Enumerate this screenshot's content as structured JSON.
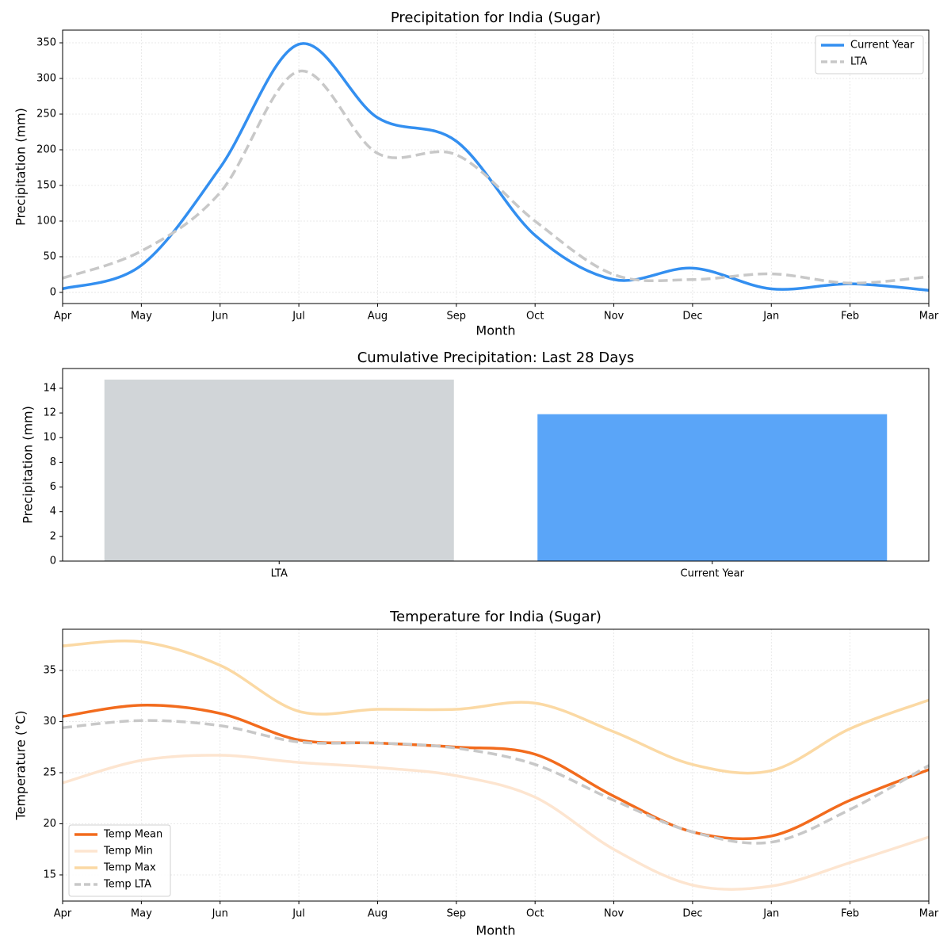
{
  "chart_data": [
    {
      "type": "line",
      "title": "Precipitation for India (Sugar)",
      "xlabel": "Month",
      "ylabel": "Precipitation (mm)",
      "categories": [
        "Apr",
        "May",
        "Jun",
        "Jul",
        "Aug",
        "Sep",
        "Oct",
        "Nov",
        "Dec",
        "Jan",
        "Feb",
        "Mar"
      ],
      "series": [
        {
          "name": "Current Year",
          "color": "#338ff0",
          "linestyle": "solid",
          "width": 3.5,
          "values": [
            5,
            38,
            175,
            348,
            245,
            212,
            80,
            18,
            34,
            5,
            12,
            3
          ]
        },
        {
          "name": "LTA",
          "color": "#c8c8c8",
          "linestyle": "dashed",
          "width": 3.5,
          "values": [
            20,
            58,
            140,
            310,
            195,
            193,
            100,
            25,
            18,
            26,
            13,
            22
          ]
        }
      ],
      "ylim": [
        -15.6,
        367.8
      ],
      "yticks": [
        0,
        50,
        100,
        150,
        200,
        250,
        300,
        350
      ],
      "grid": true,
      "legend": "upper right"
    },
    {
      "type": "bar",
      "title": "Cumulative Precipitation: Last 28 Days",
      "ylabel": "Precipitation (mm)",
      "categories": [
        "LTA",
        "Current Year"
      ],
      "values": [
        14.7,
        11.9
      ],
      "colors": [
        "#d1d5d8",
        "#5aa5f8"
      ],
      "ylim": [
        0,
        15.6
      ],
      "yticks": [
        0,
        2,
        4,
        6,
        8,
        10,
        12,
        14
      ],
      "grid": false
    },
    {
      "type": "line",
      "title": "Temperature for India (Sugar)",
      "xlabel": "Month",
      "ylabel": "Temperature (°C)",
      "categories": [
        "Apr",
        "May",
        "Jun",
        "Jul",
        "Aug",
        "Sep",
        "Oct",
        "Nov",
        "Dec",
        "Jan",
        "Feb",
        "Mar"
      ],
      "series": [
        {
          "name": "Temp Mean",
          "color": "#f26b1d",
          "linestyle": "solid",
          "width": 3.5,
          "values": [
            30.5,
            31.6,
            30.8,
            28.2,
            27.9,
            27.5,
            26.8,
            22.7,
            19.2,
            18.8,
            22.3,
            25.3
          ]
        },
        {
          "name": "Temp Min",
          "color": "#fde5d0",
          "linestyle": "solid",
          "width": 3.5,
          "values": [
            24.0,
            26.2,
            26.7,
            26.0,
            25.5,
            24.7,
            22.6,
            17.5,
            14.0,
            13.9,
            16.2,
            18.7
          ]
        },
        {
          "name": "Temp Max",
          "color": "#fbd9a4",
          "linestyle": "solid",
          "width": 3.5,
          "values": [
            37.4,
            37.8,
            35.5,
            31.0,
            31.2,
            31.2,
            31.8,
            29.0,
            25.8,
            25.2,
            29.3,
            32.1
          ]
        },
        {
          "name": "Temp LTA",
          "color": "#c8c8c8",
          "linestyle": "dashed",
          "width": 3.5,
          "values": [
            29.4,
            30.1,
            29.6,
            28.0,
            27.9,
            27.4,
            25.8,
            22.3,
            19.2,
            18.2,
            21.4,
            25.7
          ]
        }
      ],
      "ylim": [
        12.44,
        39.03
      ],
      "yticks": [
        15,
        20,
        25,
        30,
        35
      ],
      "grid": true,
      "legend": "lower left"
    }
  ]
}
